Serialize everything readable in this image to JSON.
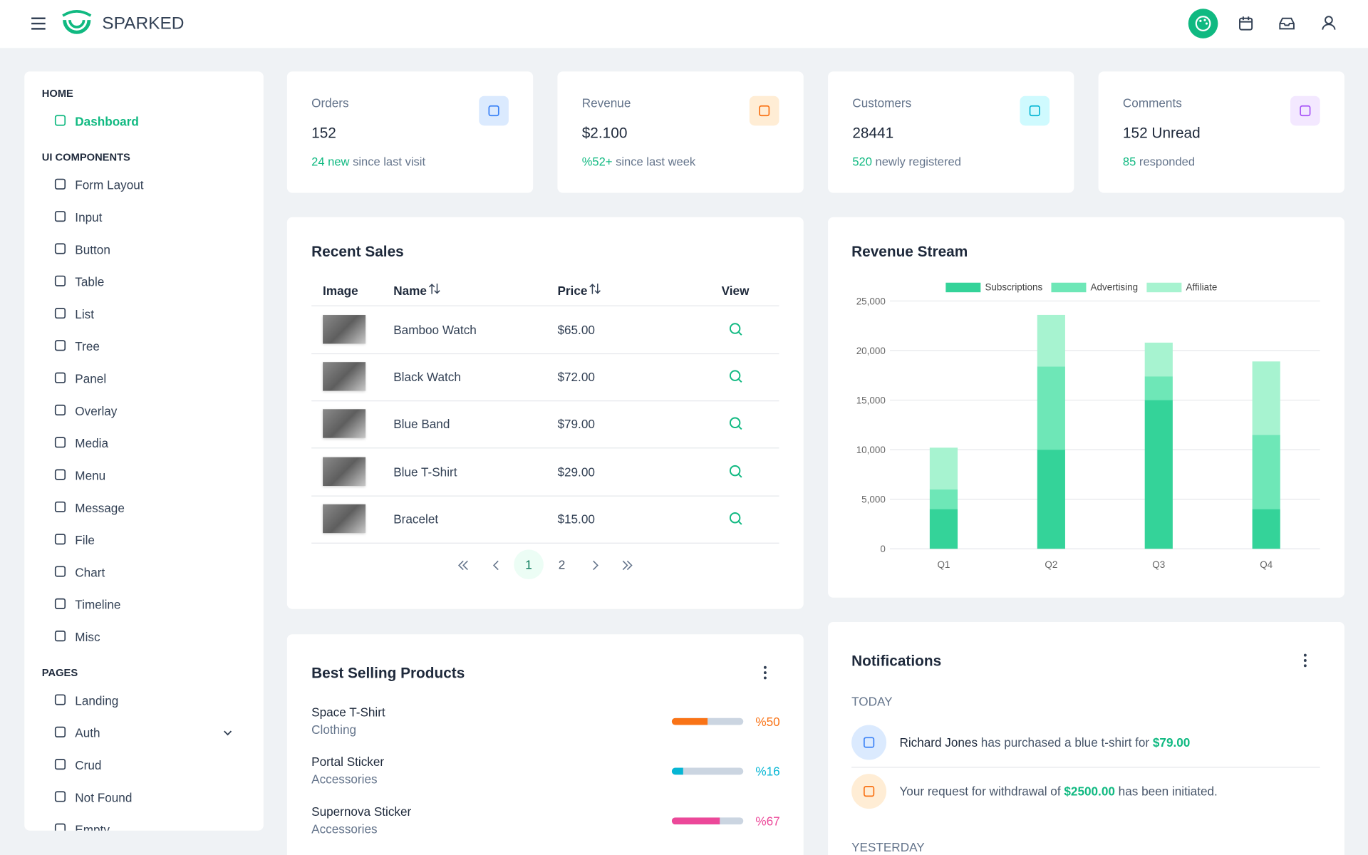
{
  "header": {
    "brand": "SPARKED"
  },
  "sidebar": {
    "sections": [
      {
        "title": "HOME",
        "items": [
          "Dashboard"
        ]
      },
      {
        "title": "UI COMPONENTS",
        "items": [
          "Form Layout",
          "Input",
          "Button",
          "Table",
          "List",
          "Tree",
          "Panel",
          "Overlay",
          "Media",
          "Menu",
          "Message",
          "File",
          "Chart",
          "Timeline",
          "Misc"
        ]
      },
      {
        "title": "PAGES",
        "items": [
          "Landing",
          "Auth",
          "Crud",
          "Not Found",
          "Empty"
        ]
      }
    ]
  },
  "stats": [
    {
      "title": "Orders",
      "value": "152",
      "highlight": "24 new",
      "note": "since last visit"
    },
    {
      "title": "Revenue",
      "value": "$2.100",
      "highlight": "%52+",
      "note": "since last week"
    },
    {
      "title": "Customers",
      "value": "28441",
      "highlight": "520",
      "note": "newly registered"
    },
    {
      "title": "Comments",
      "value": "152 Unread",
      "highlight": "85",
      "note": "responded"
    }
  ],
  "recent_sales": {
    "title": "Recent Sales",
    "columns": [
      "Image",
      "Name",
      "Price",
      "View"
    ],
    "rows": [
      [
        "Bamboo Watch",
        "$65.00"
      ],
      [
        "Black Watch",
        "$72.00"
      ],
      [
        "Blue Band",
        "$79.00"
      ],
      [
        "Blue T-Shirt",
        "$29.00"
      ],
      [
        "Bracelet",
        "$15.00"
      ]
    ],
    "pages": [
      "1",
      "2"
    ]
  },
  "revenue_chart": {
    "type": "bar",
    "stacked": true,
    "title": "Revenue Stream",
    "categories": [
      "Q1",
      "Q2",
      "Q3",
      "Q4"
    ],
    "series": [
      {
        "name": "Subscriptions",
        "color": "#34d399",
        "values": [
          4000,
          10000,
          15000,
          4000
        ]
      },
      {
        "name": "Advertising",
        "color": "#6ee7b7",
        "values": [
          2000,
          8400,
          2400,
          7500
        ]
      },
      {
        "name": "Affiliate",
        "color": "#a7f3d0",
        "values": [
          4200,
          5200,
          3400,
          7400
        ]
      }
    ],
    "ylim": [
      0,
      25000
    ],
    "yticks": [
      0,
      {
        "value": 5000,
        "label": "5,000"
      },
      {
        "value": 10000,
        "label": "10,000"
      },
      {
        "value": 15000,
        "label": "15,000"
      },
      {
        "value": 20000,
        "label": "20,000"
      },
      {
        "value": 25000,
        "label": "25,000"
      }
    ],
    "grid": true,
    "legend": "top"
  },
  "best_selling": {
    "title": "Best Selling Products",
    "products": [
      {
        "name": "Space T-Shirt",
        "category": "Clothing",
        "percent": 50,
        "percent_label": "%50",
        "color": "#f97316"
      },
      {
        "name": "Portal Sticker",
        "category": "Accessories",
        "percent": 16,
        "percent_label": "%16",
        "color": "#06b6d4"
      },
      {
        "name": "Supernova Sticker",
        "category": "Accessories",
        "percent": 67,
        "percent_label": "%67",
        "color": "#ec4899"
      }
    ]
  },
  "notifications": {
    "title": "Notifications",
    "groups": [
      {
        "label": "TODAY",
        "items": [
          [
            {
              "text": "Richard Jones",
              "style": "name"
            },
            {
              "text": "has purchased a blue t-shirt for",
              "style": "plain"
            },
            {
              "text": "$79.00",
              "style": "money"
            }
          ],
          [
            {
              "text": "Your request for withdrawal of",
              "style": "plain"
            },
            {
              "text": "$2500.00",
              "style": "money"
            },
            {
              "text": "has been initiated.",
              "style": "plain"
            }
          ]
        ]
      },
      {
        "label": "YESTERDAY"
      }
    ]
  }
}
